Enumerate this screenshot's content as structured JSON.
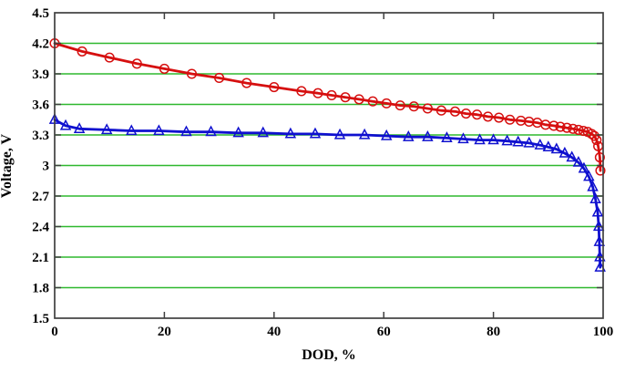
{
  "chart_data": {
    "type": "line",
    "title": "",
    "xlabel": "DOD, %",
    "ylabel": "Voltage, V",
    "xlim": [
      0,
      100
    ],
    "ylim": [
      1.5,
      4.5
    ],
    "xticks": [
      0,
      20,
      40,
      60,
      80,
      100
    ],
    "xticklabels": [
      "0",
      "20",
      "40",
      "60",
      "80",
      "100"
    ],
    "yticks": [
      1.5,
      1.8,
      2.1,
      2.4,
      2.7,
      3.0,
      3.3,
      3.6,
      3.9,
      4.2,
      4.5
    ],
    "yticklabels": [
      "1.5",
      "1.8",
      "2.1",
      "2.4",
      "2.7",
      "3",
      "3.3",
      "3.6",
      "3.9",
      "4.2",
      "4.5"
    ],
    "grid": "horizontal-only",
    "gridline_color": "#2eb82e",
    "axis_color": "#3f3f3f",
    "background_color": "#ffffff",
    "legend": "none",
    "series": [
      {
        "name": "red-circle-series",
        "marker": "circle",
        "color": "#d60f0f",
        "points": [
          [
            0,
            4.2
          ],
          [
            5,
            4.12
          ],
          [
            10,
            4.06
          ],
          [
            15,
            4.0
          ],
          [
            20,
            3.95
          ],
          [
            25,
            3.9
          ],
          [
            30,
            3.86
          ],
          [
            35,
            3.81
          ],
          [
            40,
            3.77
          ],
          [
            45,
            3.73
          ],
          [
            48,
            3.71
          ],
          [
            50.5,
            3.69
          ],
          [
            53,
            3.67
          ],
          [
            55.5,
            3.65
          ],
          [
            58,
            3.63
          ],
          [
            60.5,
            3.61
          ],
          [
            63,
            3.59
          ],
          [
            65.5,
            3.58
          ],
          [
            68,
            3.56
          ],
          [
            70.5,
            3.54
          ],
          [
            73,
            3.53
          ],
          [
            75,
            3.51
          ],
          [
            77,
            3.5
          ],
          [
            79,
            3.48
          ],
          [
            81,
            3.47
          ],
          [
            83,
            3.45
          ],
          [
            85,
            3.44
          ],
          [
            86.5,
            3.43
          ],
          [
            88,
            3.42
          ],
          [
            89.5,
            3.4
          ],
          [
            91,
            3.39
          ],
          [
            92.2,
            3.38
          ],
          [
            93.4,
            3.37
          ],
          [
            94.5,
            3.36
          ],
          [
            95.5,
            3.35
          ],
          [
            96.4,
            3.34
          ],
          [
            97.2,
            3.33
          ],
          [
            97.9,
            3.31
          ],
          [
            98.4,
            3.29
          ],
          [
            98.8,
            3.25
          ],
          [
            99.1,
            3.19
          ],
          [
            99.4,
            3.08
          ],
          [
            99.5,
            2.95
          ]
        ]
      },
      {
        "name": "blue-triangle-series",
        "marker": "triangle-up",
        "color": "#0f10cf",
        "points": [
          [
            0,
            3.45
          ],
          [
            2,
            3.39
          ],
          [
            4.5,
            3.36
          ],
          [
            9.5,
            3.35
          ],
          [
            14,
            3.34
          ],
          [
            19,
            3.34
          ],
          [
            24,
            3.33
          ],
          [
            28.5,
            3.33
          ],
          [
            33.5,
            3.32
          ],
          [
            38,
            3.32
          ],
          [
            43,
            3.31
          ],
          [
            47.5,
            3.31
          ],
          [
            52,
            3.3
          ],
          [
            56.5,
            3.3
          ],
          [
            60.5,
            3.29
          ],
          [
            64.5,
            3.28
          ],
          [
            68,
            3.28
          ],
          [
            71.5,
            3.27
          ],
          [
            74.5,
            3.26
          ],
          [
            77.5,
            3.25
          ],
          [
            80,
            3.25
          ],
          [
            82.5,
            3.24
          ],
          [
            84.5,
            3.23
          ],
          [
            86.5,
            3.22
          ],
          [
            88.5,
            3.2
          ],
          [
            90,
            3.18
          ],
          [
            91.5,
            3.16
          ],
          [
            93,
            3.12
          ],
          [
            94.3,
            3.08
          ],
          [
            95.5,
            3.03
          ],
          [
            96.5,
            2.97
          ],
          [
            97.4,
            2.89
          ],
          [
            98.1,
            2.79
          ],
          [
            98.6,
            2.67
          ],
          [
            99.0,
            2.54
          ],
          [
            99.2,
            2.4
          ],
          [
            99.3,
            2.25
          ],
          [
            99.4,
            2.1
          ],
          [
            99.45,
            2.0
          ]
        ]
      }
    ]
  }
}
